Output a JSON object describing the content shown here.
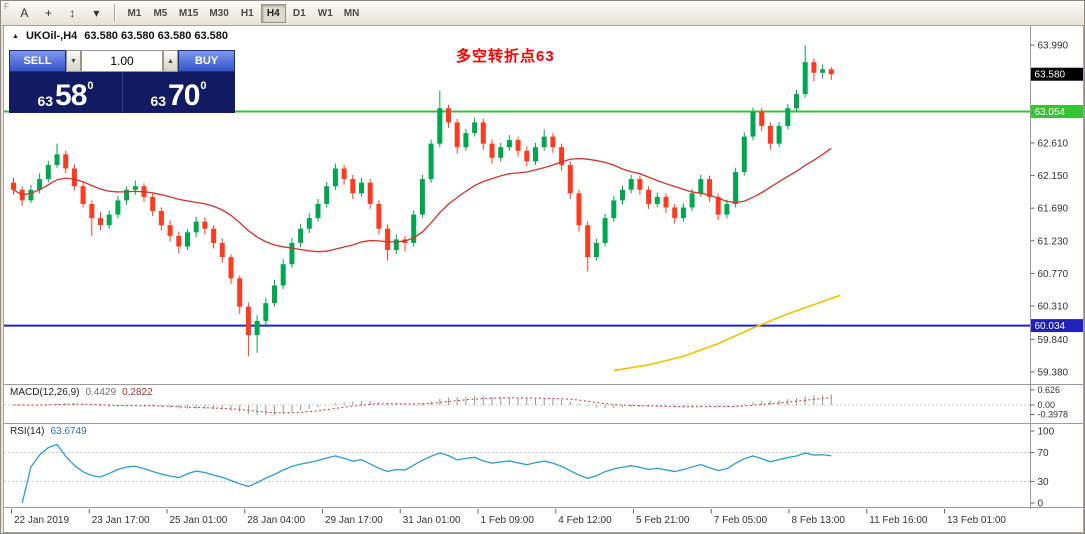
{
  "toolbar": {
    "handle_label": "F",
    "tools": [
      {
        "name": "text-tool",
        "glyph": "A"
      },
      {
        "name": "crosshair-tool",
        "glyph": "+"
      },
      {
        "name": "cursor-tool",
        "glyph": "↕"
      },
      {
        "name": "tools-dropdown",
        "glyph": "▾"
      }
    ],
    "timeframes": {
      "items": [
        "M1",
        "M5",
        "M15",
        "M30",
        "H1",
        "H4",
        "D1",
        "W1",
        "MN"
      ],
      "active": "H4"
    }
  },
  "chart_header": {
    "collapse_icon": "▲",
    "symbol": "UKOil-,H4",
    "ohlc": "63.580 63.580 63.580 63.580"
  },
  "trade_panel": {
    "sell_label": "SELL",
    "buy_label": "BUY",
    "volume": "1.00",
    "spinner_down": "▼",
    "spinner_up": "▲",
    "sell_price": {
      "prefix": "63",
      "big": "58",
      "sup": "0"
    },
    "buy_price": {
      "prefix": "63",
      "big": "70",
      "sup": "0"
    }
  },
  "annotation": {
    "text": "多空转折点63",
    "color": "#ff0000"
  },
  "price_axis": {
    "ticks": [
      "63.990",
      "62.610",
      "62.150",
      "61.690",
      "61.230",
      "60.770",
      "60.310",
      "59.840",
      "59.380"
    ],
    "current": {
      "text": "63.580",
      "price": 63.58,
      "bg": "#000000"
    },
    "lines": [
      {
        "text": "63.054",
        "price": 63.054,
        "color": "#35c435"
      },
      {
        "text": "60.034",
        "price": 60.034,
        "color": "#2121bd"
      }
    ]
  },
  "macd_pane": {
    "title": "MACD(12,26,9)",
    "value_main": "0.4429",
    "value_signal": "0.2822",
    "axis": [
      "0.626",
      "0.00",
      "-0.3978"
    ]
  },
  "rsi_pane": {
    "title": "RSI(14)",
    "value": "63.6749",
    "axis": [
      "100",
      "70",
      "30",
      "0"
    ],
    "levels": [
      70,
      30
    ]
  },
  "time_axis": {
    "labels": [
      "22 Jan 2019",
      "23 Jan 17:00",
      "25 Jan 01:00",
      "28 Jan 04:00",
      "29 Jan 17:00",
      "31 Jan 01:00",
      "1 Feb 09:00",
      "4 Feb 12:00",
      "5 Feb 21:00",
      "7 Feb 05:00",
      "8 Feb 13:00",
      "11 Feb 16:00",
      "13 Feb 01:00"
    ]
  },
  "chart_data": {
    "type": "candlestick",
    "symbol": "UKOil-",
    "timeframe": "H4",
    "ylim": [
      59.21,
      64.26
    ],
    "up_color": "#00a650",
    "down_color": "#ff3b1f",
    "ma_fast": {
      "period": 21,
      "color": "#d0342c"
    },
    "ma_slow": {
      "color": "#f2c200",
      "points": [
        [
          69,
          59.4
        ],
        [
          73,
          59.48
        ],
        [
          77,
          59.6
        ],
        [
          81,
          59.78
        ],
        [
          85,
          60.0
        ],
        [
          89,
          60.2
        ],
        [
          92,
          60.33
        ],
        [
          95,
          60.46
        ]
      ]
    },
    "macd": {
      "fast": 12,
      "slow": 26,
      "signal": 9,
      "hist_color": "#9a9a9a",
      "signal_color": "#d0342c"
    },
    "rsi": {
      "period": 14,
      "color": "#2e9bd6"
    },
    "ohlc": [
      [
        62.05,
        62.12,
        61.88,
        61.95
      ],
      [
        61.95,
        62.0,
        61.72,
        61.8
      ],
      [
        61.8,
        62.02,
        61.76,
        61.95
      ],
      [
        61.95,
        62.18,
        61.9,
        62.1
      ],
      [
        62.1,
        62.36,
        62.05,
        62.3
      ],
      [
        62.3,
        62.6,
        62.26,
        62.45
      ],
      [
        62.45,
        62.5,
        62.18,
        62.25
      ],
      [
        62.25,
        62.31,
        61.94,
        62.0
      ],
      [
        62.0,
        62.05,
        61.7,
        61.75
      ],
      [
        61.75,
        61.8,
        61.3,
        61.55
      ],
      [
        61.55,
        61.64,
        61.38,
        61.45
      ],
      [
        61.45,
        61.66,
        61.4,
        61.6
      ],
      [
        61.6,
        61.86,
        61.55,
        61.8
      ],
      [
        61.8,
        62.0,
        61.74,
        61.95
      ],
      [
        61.95,
        62.08,
        61.88,
        62.0
      ],
      [
        62.0,
        62.04,
        61.78,
        61.85
      ],
      [
        61.85,
        61.9,
        61.58,
        61.65
      ],
      [
        61.65,
        61.7,
        61.38,
        61.45
      ],
      [
        61.45,
        61.52,
        61.22,
        61.3
      ],
      [
        61.3,
        61.36,
        61.05,
        61.15
      ],
      [
        61.15,
        61.4,
        61.1,
        61.35
      ],
      [
        61.35,
        61.57,
        61.28,
        61.5
      ],
      [
        61.5,
        61.56,
        61.32,
        61.4
      ],
      [
        61.4,
        61.45,
        61.12,
        61.2
      ],
      [
        61.2,
        61.26,
        60.92,
        61.0
      ],
      [
        61.0,
        61.04,
        60.62,
        60.7
      ],
      [
        60.7,
        60.74,
        60.2,
        60.3
      ],
      [
        60.3,
        60.36,
        59.6,
        59.9
      ],
      [
        59.9,
        60.18,
        59.65,
        60.1
      ],
      [
        60.1,
        60.42,
        60.04,
        60.35
      ],
      [
        60.35,
        60.68,
        60.3,
        60.6
      ],
      [
        60.6,
        60.97,
        60.55,
        60.9
      ],
      [
        60.9,
        61.27,
        60.85,
        61.2
      ],
      [
        61.2,
        61.47,
        61.14,
        61.4
      ],
      [
        61.4,
        61.62,
        61.34,
        61.55
      ],
      [
        61.55,
        61.82,
        61.5,
        61.75
      ],
      [
        61.75,
        62.06,
        61.7,
        62.0
      ],
      [
        62.0,
        62.32,
        61.95,
        62.25
      ],
      [
        62.25,
        62.3,
        62.02,
        62.1
      ],
      [
        62.1,
        62.16,
        61.82,
        61.9
      ],
      [
        61.9,
        62.12,
        61.85,
        62.05
      ],
      [
        62.05,
        62.1,
        61.68,
        61.75
      ],
      [
        61.75,
        61.8,
        61.32,
        61.4
      ],
      [
        61.4,
        61.46,
        60.95,
        61.1
      ],
      [
        61.1,
        61.32,
        61.04,
        61.25
      ],
      [
        61.25,
        61.3,
        61.08,
        61.2
      ],
      [
        61.2,
        61.66,
        61.15,
        61.6
      ],
      [
        61.6,
        62.16,
        61.55,
        62.1
      ],
      [
        62.1,
        62.66,
        62.05,
        62.6
      ],
      [
        62.6,
        63.35,
        62.55,
        63.1
      ],
      [
        63.1,
        63.15,
        62.82,
        62.9
      ],
      [
        62.9,
        62.95,
        62.46,
        62.55
      ],
      [
        62.55,
        62.81,
        62.5,
        62.75
      ],
      [
        62.75,
        62.97,
        62.7,
        62.9
      ],
      [
        62.9,
        62.95,
        62.52,
        62.6
      ],
      [
        62.6,
        62.66,
        62.32,
        62.4
      ],
      [
        62.4,
        62.61,
        62.35,
        62.55
      ],
      [
        62.55,
        62.72,
        62.5,
        62.65
      ],
      [
        62.65,
        62.7,
        62.42,
        62.5
      ],
      [
        62.5,
        62.56,
        62.28,
        62.35
      ],
      [
        62.35,
        62.61,
        62.3,
        62.55
      ],
      [
        62.55,
        62.8,
        62.5,
        62.7
      ],
      [
        62.7,
        62.75,
        62.47,
        62.55
      ],
      [
        62.55,
        62.6,
        62.22,
        62.3
      ],
      [
        62.3,
        62.35,
        61.82,
        61.9
      ],
      [
        61.9,
        61.95,
        61.36,
        61.45
      ],
      [
        61.45,
        61.5,
        60.8,
        61.0
      ],
      [
        61.0,
        61.26,
        60.95,
        61.2
      ],
      [
        61.2,
        61.61,
        61.15,
        61.55
      ],
      [
        61.55,
        61.86,
        61.5,
        61.8
      ],
      [
        61.8,
        62.01,
        61.74,
        61.95
      ],
      [
        61.95,
        62.16,
        61.9,
        62.1
      ],
      [
        62.1,
        62.15,
        61.88,
        61.95
      ],
      [
        61.95,
        62.0,
        61.68,
        61.75
      ],
      [
        61.75,
        61.91,
        61.7,
        61.85
      ],
      [
        61.85,
        61.9,
        61.62,
        61.7
      ],
      [
        61.7,
        61.75,
        61.47,
        61.55
      ],
      [
        61.55,
        61.76,
        61.5,
        61.7
      ],
      [
        61.7,
        61.96,
        61.65,
        61.9
      ],
      [
        61.9,
        62.16,
        61.85,
        62.1
      ],
      [
        62.1,
        62.15,
        61.78,
        61.85
      ],
      [
        61.85,
        61.9,
        61.52,
        61.6
      ],
      [
        61.6,
        61.81,
        61.55,
        61.75
      ],
      [
        61.75,
        62.26,
        61.7,
        62.2
      ],
      [
        62.2,
        62.76,
        62.15,
        62.7
      ],
      [
        62.7,
        63.11,
        62.65,
        63.05
      ],
      [
        63.05,
        63.1,
        62.78,
        62.85
      ],
      [
        62.85,
        62.9,
        62.52,
        62.6
      ],
      [
        62.6,
        62.91,
        62.55,
        62.85
      ],
      [
        62.85,
        63.16,
        62.8,
        63.1
      ],
      [
        63.1,
        63.36,
        63.05,
        63.3
      ],
      [
        63.3,
        63.99,
        63.25,
        63.75
      ],
      [
        63.75,
        63.8,
        63.48,
        63.6
      ],
      [
        63.6,
        63.72,
        63.52,
        63.65
      ],
      [
        63.65,
        63.68,
        63.5,
        63.58
      ]
    ]
  }
}
